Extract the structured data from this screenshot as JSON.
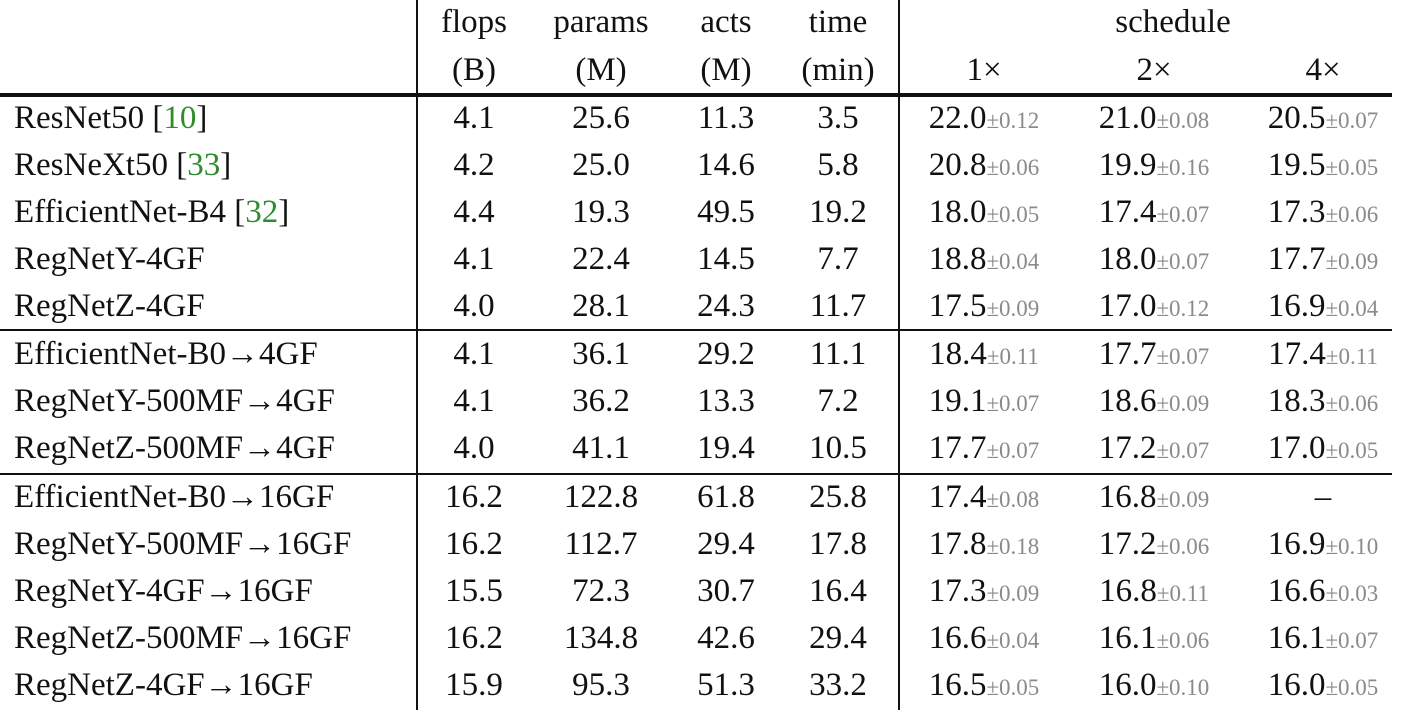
{
  "header": {
    "flops": [
      "flops",
      "(B)"
    ],
    "params": [
      "params",
      "(M)"
    ],
    "acts": [
      "acts",
      "(M)"
    ],
    "time": [
      "time",
      "(min)"
    ],
    "schedule": "schedule",
    "schedules": [
      "1×",
      "2×",
      "4×"
    ]
  },
  "groups": [
    [
      {
        "model": "ResNet50",
        "ref": "10",
        "flops": "4.1",
        "params": "25.6",
        "acts": "11.3",
        "time": "3.5",
        "s1": {
          "v": "22.0",
          "pm": "±0.12"
        },
        "s2": {
          "v": "21.0",
          "pm": "±0.08"
        },
        "s4": {
          "v": "20.5",
          "pm": "±0.07"
        }
      },
      {
        "model": "ResNeXt50",
        "ref": "33",
        "flops": "4.2",
        "params": "25.0",
        "acts": "14.6",
        "time": "5.8",
        "s1": {
          "v": "20.8",
          "pm": "±0.06"
        },
        "s2": {
          "v": "19.9",
          "pm": "±0.16"
        },
        "s4": {
          "v": "19.5",
          "pm": "±0.05"
        }
      },
      {
        "model": "EfficientNet-B4",
        "ref": "32",
        "flops": "4.4",
        "params": "19.3",
        "acts": "49.5",
        "time": "19.2",
        "s1": {
          "v": "18.0",
          "pm": "±0.05"
        },
        "s2": {
          "v": "17.4",
          "pm": "±0.07"
        },
        "s4": {
          "v": "17.3",
          "pm": "±0.06"
        }
      },
      {
        "model": "RegNetY-4GF",
        "ref": "",
        "flops": "4.1",
        "params": "22.4",
        "acts": "14.5",
        "time": "7.7",
        "s1": {
          "v": "18.8",
          "pm": "±0.04"
        },
        "s2": {
          "v": "18.0",
          "pm": "±0.07"
        },
        "s4": {
          "v": "17.7",
          "pm": "±0.09"
        }
      },
      {
        "model": "RegNetZ-4GF",
        "ref": "",
        "flops": "4.0",
        "params": "28.1",
        "acts": "24.3",
        "time": "11.7",
        "s1": {
          "v": "17.5",
          "pm": "±0.09"
        },
        "s2": {
          "v": "17.0",
          "pm": "±0.12"
        },
        "s4": {
          "v": "16.9",
          "pm": "±0.04"
        }
      }
    ],
    [
      {
        "model": "EfficientNet-B0→4GF",
        "ref": "",
        "flops": "4.1",
        "params": "36.1",
        "acts": "29.2",
        "time": "11.1",
        "s1": {
          "v": "18.4",
          "pm": "±0.11"
        },
        "s2": {
          "v": "17.7",
          "pm": "±0.07"
        },
        "s4": {
          "v": "17.4",
          "pm": "±0.11"
        }
      },
      {
        "model": "RegNetY-500MF→4GF",
        "ref": "",
        "flops": "4.1",
        "params": "36.2",
        "acts": "13.3",
        "time": "7.2",
        "s1": {
          "v": "19.1",
          "pm": "±0.07"
        },
        "s2": {
          "v": "18.6",
          "pm": "±0.09"
        },
        "s4": {
          "v": "18.3",
          "pm": "±0.06"
        }
      },
      {
        "model": "RegNetZ-500MF→4GF",
        "ref": "",
        "flops": "4.0",
        "params": "41.1",
        "acts": "19.4",
        "time": "10.5",
        "s1": {
          "v": "17.7",
          "pm": "±0.07"
        },
        "s2": {
          "v": "17.2",
          "pm": "±0.07"
        },
        "s4": {
          "v": "17.0",
          "pm": "±0.05"
        }
      }
    ],
    [
      {
        "model": "EfficientNet-B0→16GF",
        "ref": "",
        "flops": "16.2",
        "params": "122.8",
        "acts": "61.8",
        "time": "25.8",
        "s1": {
          "v": "17.4",
          "pm": "±0.08"
        },
        "s2": {
          "v": "16.8",
          "pm": "±0.09"
        },
        "s4": {
          "v": "–",
          "pm": ""
        }
      },
      {
        "model": "RegNetY-500MF→16GF",
        "ref": "",
        "flops": "16.2",
        "params": "112.7",
        "acts": "29.4",
        "time": "17.8",
        "s1": {
          "v": "17.8",
          "pm": "±0.18"
        },
        "s2": {
          "v": "17.2",
          "pm": "±0.06"
        },
        "s4": {
          "v": "16.9",
          "pm": "±0.10"
        }
      },
      {
        "model": "RegNetY-4GF→16GF",
        "ref": "",
        "flops": "15.5",
        "params": "72.3",
        "acts": "30.7",
        "time": "16.4",
        "s1": {
          "v": "17.3",
          "pm": "±0.09"
        },
        "s2": {
          "v": "16.8",
          "pm": "±0.11"
        },
        "s4": {
          "v": "16.6",
          "pm": "±0.03"
        }
      },
      {
        "model": "RegNetZ-500MF→16GF",
        "ref": "",
        "flops": "16.2",
        "params": "134.8",
        "acts": "42.6",
        "time": "29.4",
        "s1": {
          "v": "16.6",
          "pm": "±0.04"
        },
        "s2": {
          "v": "16.1",
          "pm": "±0.06"
        },
        "s4": {
          "v": "16.1",
          "pm": "±0.07"
        }
      },
      {
        "model": "RegNetZ-4GF→16GF",
        "ref": "",
        "flops": "15.9",
        "params": "95.3",
        "acts": "51.3",
        "time": "33.2",
        "s1": {
          "v": "16.5",
          "pm": "±0.05"
        },
        "s2": {
          "v": "16.0",
          "pm": "±0.10"
        },
        "s4": {
          "v": "16.0",
          "pm": "±0.05"
        }
      }
    ]
  ]
}
